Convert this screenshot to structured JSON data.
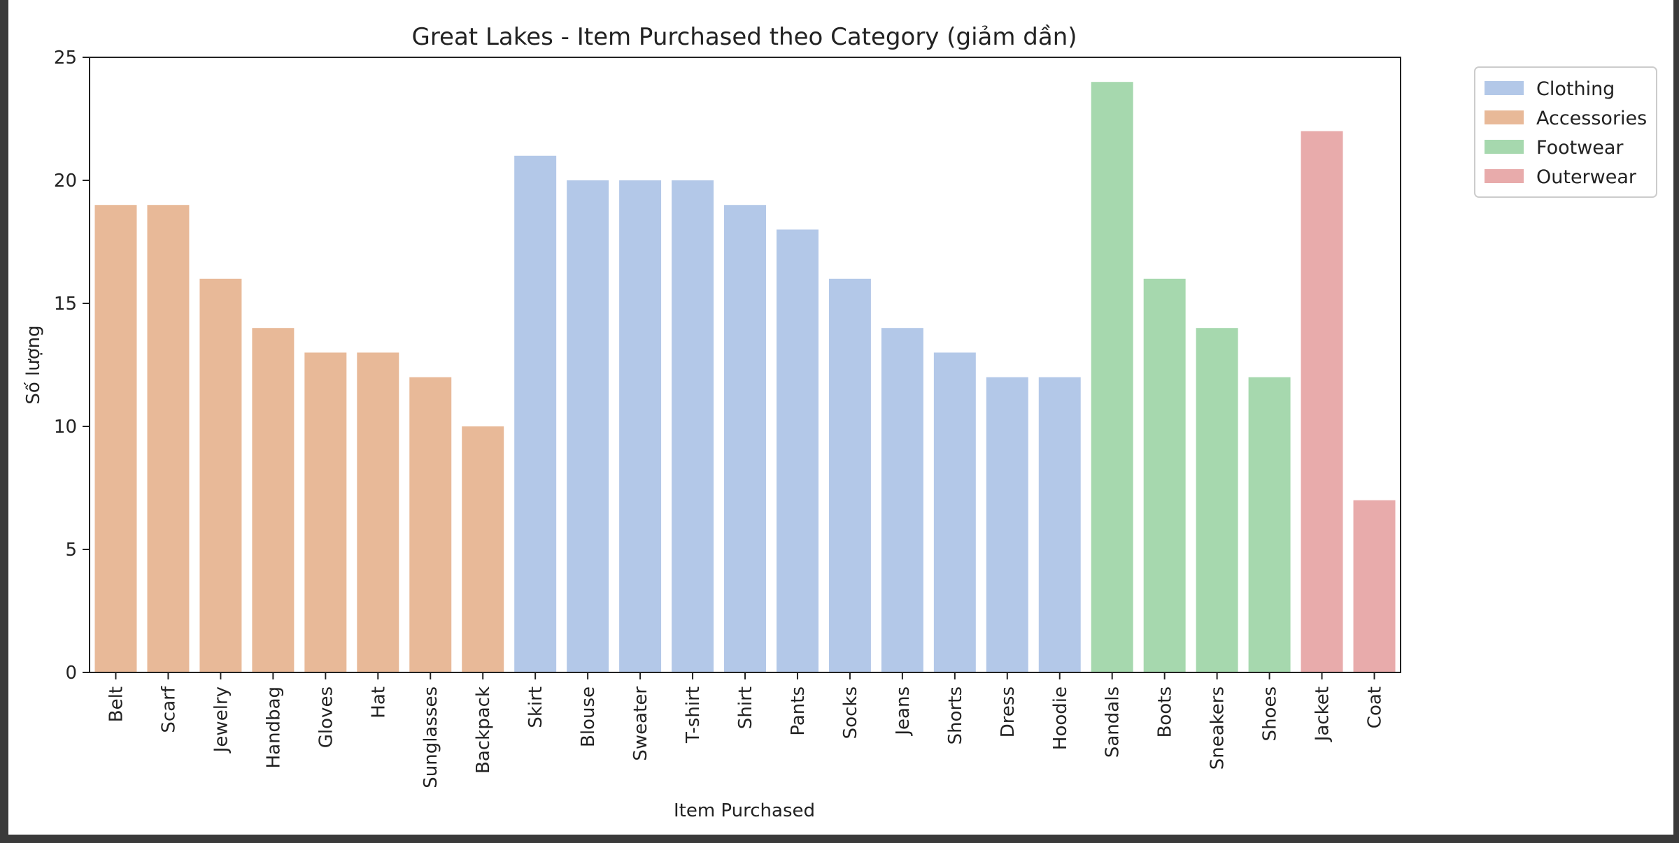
{
  "chart_data": {
    "type": "bar",
    "title": "Great Lakes - Item Purchased theo Category (giảm dần)",
    "xlabel": "Item Purchased",
    "ylabel": "Số lượng",
    "ylim": [
      0,
      25
    ],
    "yticks": [
      0,
      5,
      10,
      15,
      20,
      25
    ],
    "grid": false,
    "legend_position": "top-right, outside plot",
    "categories": [
      "Belt",
      "Scarf",
      "Jewelry",
      "Handbag",
      "Gloves",
      "Hat",
      "Sunglasses",
      "Backpack",
      "Skirt",
      "Blouse",
      "Sweater",
      "T-shirt",
      "Shirt",
      "Pants",
      "Socks",
      "Jeans",
      "Shorts",
      "Dress",
      "Hoodie",
      "Sandals",
      "Boots",
      "Sneakers",
      "Shoes",
      "Jacket",
      "Coat"
    ],
    "values": [
      19,
      19,
      16,
      14,
      13,
      13,
      12,
      10,
      21,
      20,
      20,
      20,
      19,
      18,
      16,
      14,
      13,
      12,
      12,
      24,
      16,
      14,
      12,
      22,
      7
    ],
    "bar_series": [
      "Accessories",
      "Accessories",
      "Accessories",
      "Accessories",
      "Accessories",
      "Accessories",
      "Accessories",
      "Accessories",
      "Clothing",
      "Clothing",
      "Clothing",
      "Clothing",
      "Clothing",
      "Clothing",
      "Clothing",
      "Clothing",
      "Clothing",
      "Clothing",
      "Clothing",
      "Footwear",
      "Footwear",
      "Footwear",
      "Footwear",
      "Outerwear",
      "Outerwear"
    ],
    "series": [
      {
        "name": "Clothing",
        "color": "#b3c8e8"
      },
      {
        "name": "Accessories",
        "color": "#e8b998"
      },
      {
        "name": "Footwear",
        "color": "#a6d8ae"
      },
      {
        "name": "Outerwear",
        "color": "#e8abab"
      }
    ]
  }
}
